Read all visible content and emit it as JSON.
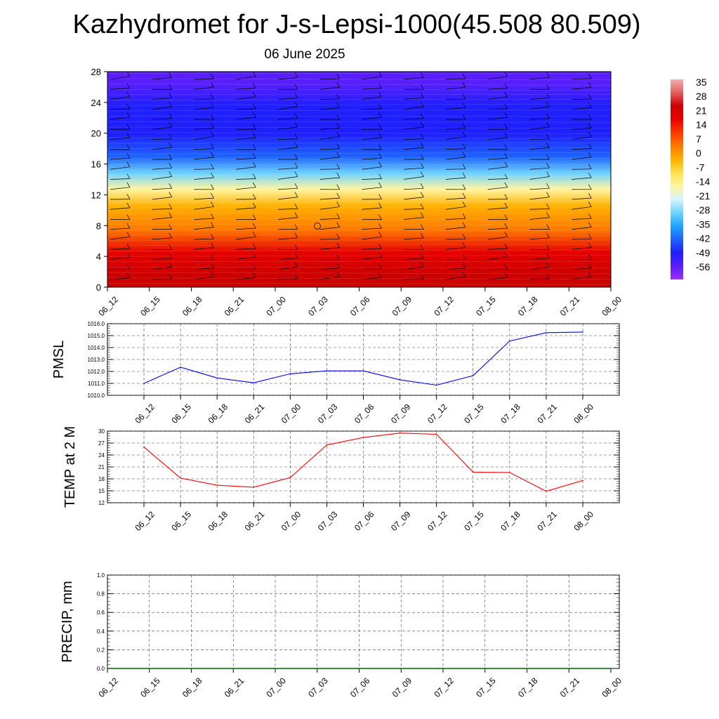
{
  "title": "Kazhydromet for J-s-Lepsi-1000(45.508 80.509)",
  "subtitle": "06 June 2025",
  "time_labels": [
    "06_12",
    "06_15",
    "06_18",
    "06_21",
    "07_00",
    "07_03",
    "07_06",
    "07_09",
    "07_12",
    "07_15",
    "07_18",
    "07_21",
    "08_00"
  ],
  "colors": {
    "pmsl_line": "#0000ff",
    "temp_line": "#ff0000",
    "precip_line": "#006400",
    "colorbar": [
      "#9b30ff",
      "#5a1fff",
      "#1f1fff",
      "#1e62ff",
      "#21a4ff",
      "#6fd3ff",
      "#d4f4ff",
      "#fff5a0",
      "#ffe14d",
      "#ffb000",
      "#ff7a00",
      "#ff3a00",
      "#e60000",
      "#cc0000",
      "#e06060",
      "#f0b0b0"
    ]
  },
  "chart_data": [
    {
      "type": "heatmap",
      "name": "vertical-section",
      "x": [
        "06_12",
        "06_15",
        "06_18",
        "06_21",
        "07_00",
        "07_03",
        "07_06",
        "07_09",
        "07_12",
        "07_15",
        "07_18",
        "07_21",
        "08_00"
      ],
      "ylim": [
        0,
        28
      ],
      "yticks": [
        0,
        4,
        8,
        12,
        16,
        20,
        24,
        28
      ],
      "colorbar_labels": [
        "35",
        "28",
        "21",
        "14",
        "7",
        "0",
        "-7",
        "-14",
        "-21",
        "-28",
        "-35",
        "-42",
        "-49",
        "-56"
      ],
      "bands": [
        {
          "from": 0,
          "to": 3,
          "value": 28
        },
        {
          "from": 3,
          "to": 6,
          "value": 18
        },
        {
          "from": 6,
          "to": 9,
          "value": 7
        },
        {
          "from": 9,
          "to": 12,
          "value": -3
        },
        {
          "from": 12,
          "to": 13.5,
          "value": -14
        },
        {
          "from": 13.5,
          "to": 16,
          "value": -28
        },
        {
          "from": 16,
          "to": 18,
          "value": -42
        },
        {
          "from": 18,
          "to": 22,
          "value": -52
        },
        {
          "from": 22,
          "to": 25,
          "value": -50
        },
        {
          "from": 25,
          "to": 28,
          "value": -56
        }
      ]
    },
    {
      "type": "line",
      "name": "pmsl",
      "ylabel": "PMSL",
      "ylim": [
        1010.0,
        1016.0
      ],
      "yticks": [
        "1010.0",
        "1011.0",
        "1012.0",
        "1013.0",
        "1014.0",
        "1015.0",
        "1016.0"
      ],
      "x": [
        "06_12",
        "06_15",
        "06_18",
        "06_21",
        "07_00",
        "07_03",
        "07_06",
        "07_09",
        "07_12",
        "07_15",
        "07_18",
        "07_21",
        "08_00"
      ],
      "values": [
        1011.0,
        1012.35,
        1011.45,
        1011.05,
        1011.8,
        1012.05,
        1012.05,
        1011.3,
        1010.85,
        1011.65,
        1014.55,
        1015.25,
        1015.3
      ]
    },
    {
      "type": "line",
      "name": "temp2m",
      "ylabel": "TEMP at 2 M",
      "ylim": [
        12,
        30
      ],
      "yticks": [
        "12",
        "15",
        "18",
        "21",
        "24",
        "27",
        "30"
      ],
      "x": [
        "06_12",
        "06_15",
        "06_18",
        "06_21",
        "07_00",
        "07_03",
        "07_06",
        "07_09",
        "07_12",
        "07_15",
        "07_18",
        "07_21",
        "08_00"
      ],
      "values": [
        26.0,
        18.2,
        16.4,
        15.9,
        18.3,
        26.5,
        28.4,
        29.5,
        29.2,
        19.7,
        19.6,
        14.9,
        17.6
      ]
    },
    {
      "type": "line",
      "name": "precip",
      "ylabel": "PRECIP, mm",
      "ylim": [
        0.0,
        1.0
      ],
      "yticks": [
        "0.0",
        "0.2",
        "0.4",
        "0.6",
        "0.8",
        "1.0"
      ],
      "x": [
        "06_12",
        "06_15",
        "06_18",
        "06_21",
        "07_00",
        "07_03",
        "07_06",
        "07_09",
        "07_12",
        "07_15",
        "07_18",
        "07_21",
        "08_00"
      ],
      "values": [
        0,
        0,
        0,
        0,
        0,
        0,
        0,
        0,
        0,
        0,
        0,
        0,
        0
      ]
    }
  ]
}
